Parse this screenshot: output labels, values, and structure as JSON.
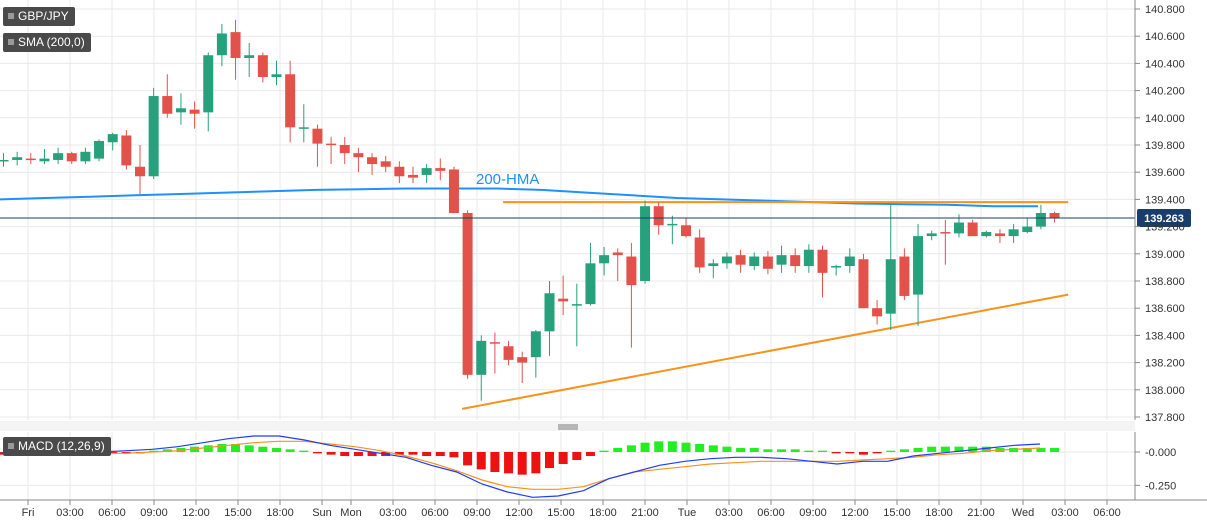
{
  "legend": {
    "symbol": "GBP/JPY",
    "sma": "SMA (200,0)",
    "macd": "MACD (12,26,9)"
  },
  "annotation": "200-HMA",
  "colors": {
    "up": "#26a17b",
    "down": "#e2524b",
    "hma": "#1e90ff",
    "trend": "#f7931a",
    "macd_line": "#1e3cff",
    "signal_line": "#f7931a",
    "hist_up": "#22ee22",
    "hist_down": "#ee1111",
    "price_line": "#1a3e6b",
    "grid": "#e9e9e9"
  },
  "chart_data": {
    "type": "candlestick",
    "current_price": 139.263,
    "price_axis": {
      "min": 137.8,
      "max": 140.8,
      "ticks": [
        "140.800",
        "140.600",
        "140.400",
        "140.200",
        "140.000",
        "139.800",
        "139.600",
        "139.400",
        "139.200",
        "139.000",
        "138.800",
        "138.600",
        "138.400",
        "138.200",
        "138.000",
        "137.800"
      ]
    },
    "time_labels": [
      "Fri",
      "03:00",
      "06:00",
      "09:00",
      "12:00",
      "15:00",
      "18:00",
      "Sun",
      "Mon",
      "03:00",
      "06:00",
      "09:00",
      "12:00",
      "15:00",
      "18:00",
      "21:00",
      "Tue",
      "03:00",
      "06:00",
      "09:00",
      "12:00",
      "15:00",
      "18:00",
      "21:00",
      "Wed",
      "03:00",
      "06:00"
    ],
    "candles": [
      [
        139.69,
        139.74,
        139.64,
        139.69
      ],
      [
        139.69,
        139.75,
        139.65,
        139.71
      ],
      [
        139.7,
        139.74,
        139.66,
        139.69
      ],
      [
        139.68,
        139.77,
        139.66,
        139.7
      ],
      [
        139.69,
        139.78,
        139.66,
        139.74
      ],
      [
        139.74,
        139.75,
        139.66,
        139.68
      ],
      [
        139.68,
        139.78,
        139.66,
        139.75
      ],
      [
        139.7,
        139.84,
        139.68,
        139.83
      ],
      [
        139.82,
        139.89,
        139.76,
        139.88
      ],
      [
        139.87,
        139.91,
        139.62,
        139.65
      ],
      [
        139.64,
        139.8,
        139.44,
        139.57
      ],
      [
        139.57,
        140.22,
        139.55,
        140.16
      ],
      [
        140.16,
        140.32,
        140.0,
        140.03
      ],
      [
        140.04,
        140.18,
        139.95,
        140.07
      ],
      [
        140.06,
        140.12,
        139.92,
        140.03
      ],
      [
        140.04,
        140.48,
        139.9,
        140.46
      ],
      [
        140.46,
        140.69,
        140.38,
        140.62
      ],
      [
        140.63,
        140.72,
        140.28,
        140.44
      ],
      [
        140.44,
        140.55,
        140.3,
        140.46
      ],
      [
        140.46,
        140.48,
        140.26,
        140.3
      ],
      [
        140.3,
        140.42,
        140.24,
        140.32
      ],
      [
        140.32,
        140.42,
        139.82,
        139.93
      ],
      [
        139.93,
        140.1,
        139.82,
        139.93
      ],
      [
        139.92,
        139.95,
        139.64,
        139.81
      ],
      [
        139.81,
        139.86,
        139.66,
        139.8
      ],
      [
        139.8,
        139.86,
        139.66,
        139.74
      ],
      [
        139.74,
        139.78,
        139.6,
        139.71
      ],
      [
        139.71,
        139.74,
        139.58,
        139.66
      ],
      [
        139.68,
        139.72,
        139.6,
        139.64
      ],
      [
        139.64,
        139.68,
        139.52,
        139.57
      ],
      [
        139.58,
        139.64,
        139.52,
        139.56
      ],
      [
        139.58,
        139.66,
        139.52,
        139.63
      ],
      [
        139.63,
        139.7,
        139.54,
        139.61
      ],
      [
        139.62,
        139.64,
        139.32,
        139.3
      ],
      [
        139.3,
        139.32,
        138.08,
        138.11
      ],
      [
        138.11,
        138.4,
        137.92,
        138.36
      ],
      [
        138.35,
        138.42,
        138.12,
        138.34
      ],
      [
        138.32,
        138.36,
        138.18,
        138.22
      ],
      [
        138.24,
        138.28,
        138.05,
        138.2
      ],
      [
        138.24,
        138.44,
        138.09,
        138.43
      ],
      [
        138.43,
        138.8,
        138.25,
        138.71
      ],
      [
        138.67,
        138.84,
        138.55,
        138.65
      ],
      [
        138.62,
        138.78,
        138.32,
        138.63
      ],
      [
        138.63,
        139.08,
        138.62,
        138.93
      ],
      [
        138.93,
        139.05,
        138.84,
        138.99
      ],
      [
        139.01,
        139.04,
        138.8,
        138.99
      ],
      [
        138.98,
        139.08,
        138.31,
        138.77
      ],
      [
        138.8,
        139.39,
        138.78,
        139.35
      ],
      [
        139.35,
        139.38,
        139.14,
        139.21
      ],
      [
        139.21,
        139.28,
        139.07,
        139.22
      ],
      [
        139.21,
        139.26,
        139.12,
        139.13
      ],
      [
        139.12,
        139.18,
        138.86,
        138.9
      ],
      [
        138.91,
        138.96,
        138.82,
        138.93
      ],
      [
        138.93,
        139.01,
        138.89,
        138.98
      ],
      [
        138.99,
        139.03,
        138.86,
        138.92
      ],
      [
        138.91,
        139.01,
        138.88,
        138.98
      ],
      [
        138.98,
        139.02,
        138.85,
        138.89
      ],
      [
        138.92,
        139.06,
        138.86,
        138.99
      ],
      [
        138.99,
        139.04,
        138.86,
        138.91
      ],
      [
        138.91,
        139.07,
        138.86,
        139.03
      ],
      [
        139.03,
        139.06,
        138.68,
        138.86
      ],
      [
        138.9,
        138.92,
        138.84,
        138.91
      ],
      [
        138.91,
        139.04,
        138.86,
        138.98
      ],
      [
        138.96,
        139.0,
        138.62,
        138.6
      ],
      [
        138.6,
        138.66,
        138.48,
        138.54
      ],
      [
        138.56,
        139.37,
        138.44,
        138.96
      ],
      [
        138.98,
        139.04,
        138.66,
        138.69
      ],
      [
        138.7,
        139.22,
        138.47,
        139.13
      ],
      [
        139.13,
        139.17,
        139.1,
        139.15
      ],
      [
        139.16,
        139.25,
        138.92,
        139.15
      ],
      [
        139.15,
        139.29,
        139.12,
        139.23
      ],
      [
        139.23,
        139.25,
        139.13,
        139.13
      ],
      [
        139.13,
        139.17,
        139.12,
        139.16
      ],
      [
        139.15,
        139.18,
        139.08,
        139.13
      ],
      [
        139.13,
        139.22,
        139.08,
        139.18
      ],
      [
        139.16,
        139.26,
        139.15,
        139.2
      ],
      [
        139.2,
        139.36,
        139.18,
        139.3
      ],
      [
        139.3,
        139.31,
        139.23,
        139.26
      ]
    ],
    "hma": [
      139.4,
      139.41,
      139.42,
      139.43,
      139.44,
      139.45,
      139.46,
      139.47,
      139.475,
      139.48,
      139.48,
      139.48,
      139.47,
      139.45,
      139.43,
      139.41,
      139.4,
      139.39,
      139.38,
      139.37,
      139.365,
      139.36,
      139.35,
      139.35
    ],
    "resistance_line": {
      "from": [
        36.6,
        139.38
      ],
      "to": [
        78,
        139.38
      ]
    },
    "support_line": {
      "from": [
        33.6,
        137.86
      ],
      "to": [
        78,
        138.7
      ]
    },
    "macd": {
      "axis": {
        "min": -0.36,
        "max": 0.12,
        "ticks": [
          "-0.000",
          "-0.250"
        ]
      },
      "histogram": [
        -0.02,
        -0.02,
        -0.02,
        -0.02,
        -0.02,
        -0.02,
        -0.02,
        -0.02,
        -0.01,
        -0.01,
        -0.01,
        0.01,
        0.02,
        0.03,
        0.04,
        0.05,
        0.06,
        0.06,
        0.05,
        0.04,
        0.03,
        0.02,
        0.01,
        -0.01,
        -0.02,
        -0.03,
        -0.03,
        -0.03,
        -0.03,
        -0.02,
        -0.02,
        -0.03,
        -0.03,
        -0.04,
        -0.1,
        -0.13,
        -0.15,
        -0.16,
        -0.17,
        -0.16,
        -0.12,
        -0.09,
        -0.06,
        -0.03,
        0.01,
        0.03,
        0.05,
        0.07,
        0.08,
        0.08,
        0.07,
        0.06,
        0.05,
        0.04,
        0.03,
        0.03,
        0.02,
        0.02,
        0.02,
        0.01,
        0.01,
        -0.01,
        -0.01,
        -0.02,
        -0.01,
        0.01,
        0.02,
        0.03,
        0.04,
        0.04,
        0.04,
        0.04,
        0.04,
        0.03,
        0.03,
        0.03,
        0.03,
        0.03
      ],
      "macd_line": [
        -0.01,
        -0.01,
        -0.01,
        -0.01,
        0,
        0.01,
        0.02,
        0.04,
        0.07,
        0.1,
        0.12,
        0.12,
        0.09,
        0.05,
        0.02,
        -0.01,
        -0.04,
        -0.1,
        -0.15,
        -0.24,
        -0.3,
        -0.34,
        -0.33,
        -0.29,
        -0.2,
        -0.15,
        -0.1,
        -0.07,
        -0.05,
        -0.04,
        -0.04,
        -0.05,
        -0.07,
        -0.09,
        -0.07,
        -0.07,
        -0.03,
        -0.01,
        0.01,
        0.03,
        0.05,
        0.06
      ],
      "signal_line": [
        -0.01,
        -0.01,
        -0.01,
        -0.01,
        -0.01,
        -0.01,
        0,
        0.01,
        0.03,
        0.05,
        0.07,
        0.08,
        0.08,
        0.06,
        0.04,
        0.01,
        -0.03,
        -0.08,
        -0.14,
        -0.21,
        -0.26,
        -0.28,
        -0.28,
        -0.26,
        -0.2,
        -0.15,
        -0.13,
        -0.11,
        -0.09,
        -0.08,
        -0.07,
        -0.07,
        -0.07,
        -0.07,
        -0.06,
        -0.05,
        -0.04,
        -0.02,
        -0.01,
        0.01,
        0.02,
        0.03
      ]
    }
  }
}
